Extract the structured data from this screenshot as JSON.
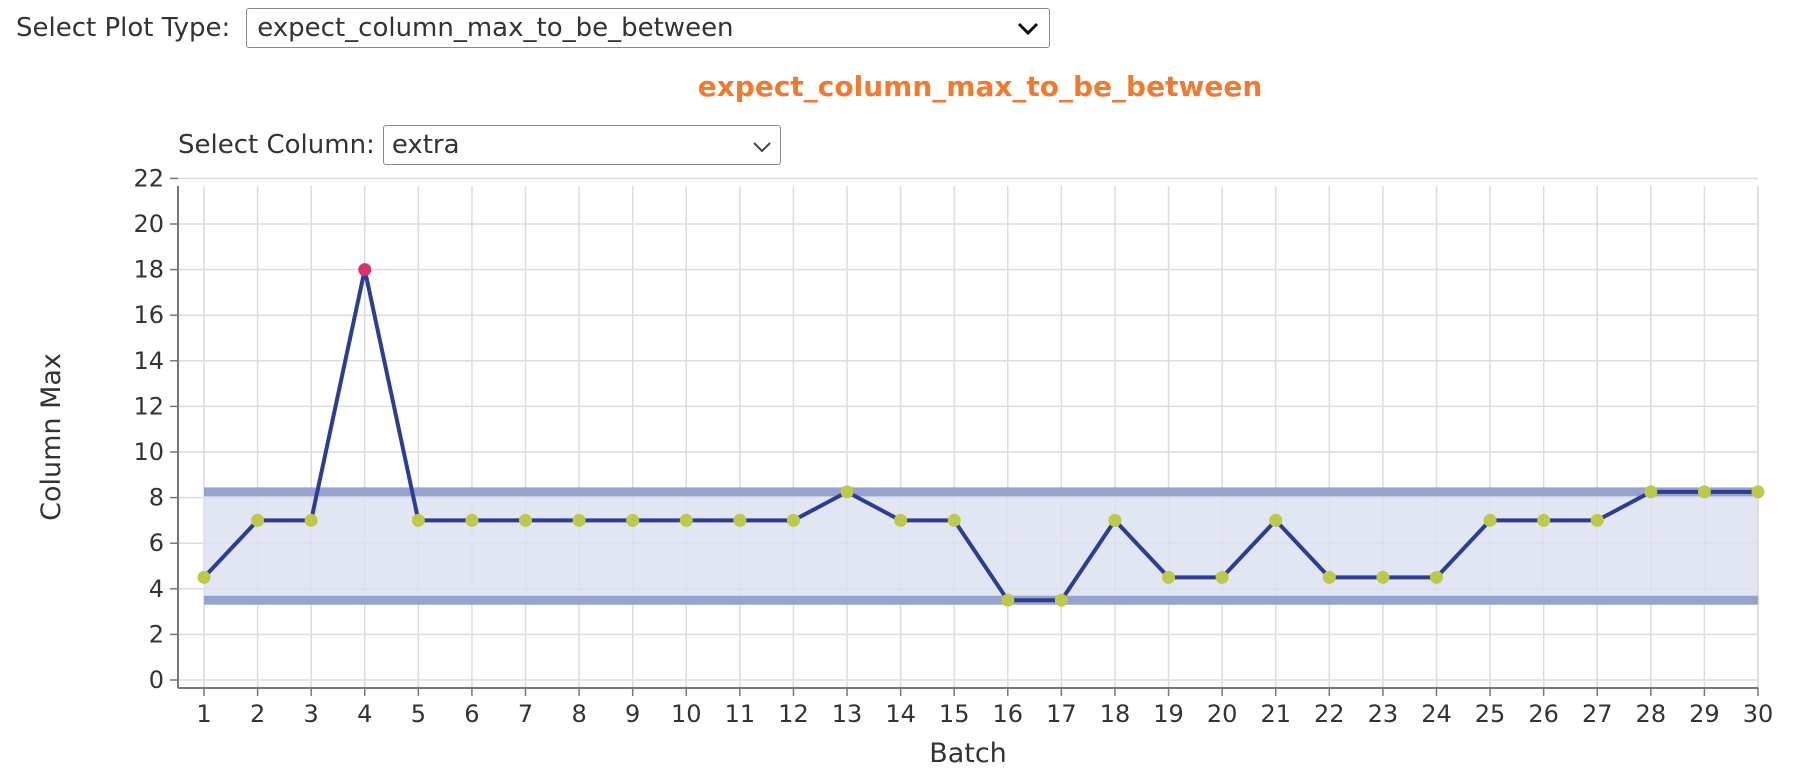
{
  "controls": {
    "plot_type_label": "Select Plot Type:",
    "plot_type_value": "expect_column_max_to_be_between",
    "column_label": "Select Column:",
    "column_value": "extra"
  },
  "icons": {
    "plot_type_dropdown": "chevron-down-icon",
    "column_dropdown": "chevron-down-icon"
  },
  "colors": {
    "title": "#f07a2f",
    "line": "#2c3e8f",
    "point_ok": "#bcc94a",
    "point_fail": "#d6336c",
    "band_fill": "#dde0f0",
    "band_edge": "#97a3cf"
  },
  "chart_data": {
    "type": "line",
    "title": "expect_column_max_to_be_between",
    "xlabel": "Batch",
    "ylabel": "Column Max",
    "x": [
      1,
      2,
      3,
      4,
      5,
      6,
      7,
      8,
      9,
      10,
      11,
      12,
      13,
      14,
      15,
      16,
      17,
      18,
      19,
      20,
      21,
      22,
      23,
      24,
      25,
      26,
      27,
      28,
      29,
      30
    ],
    "y": [
      4.5,
      7,
      7,
      18,
      7,
      7,
      7,
      7,
      7,
      7,
      7,
      7,
      8.25,
      7,
      7,
      3.5,
      3.5,
      7,
      4.5,
      4.5,
      7,
      4.5,
      4.5,
      4.5,
      7,
      7,
      7,
      8.25,
      8.25,
      8.25
    ],
    "outliers": [
      4
    ],
    "expected_range": {
      "min": 3.5,
      "max": 8.25
    },
    "xticks": [
      1,
      2,
      3,
      4,
      5,
      6,
      7,
      8,
      9,
      10,
      11,
      12,
      13,
      14,
      15,
      16,
      17,
      18,
      19,
      20,
      21,
      22,
      23,
      24,
      25,
      26,
      27,
      28,
      29,
      30
    ],
    "yticks": [
      0,
      2,
      4,
      6,
      8,
      10,
      12,
      14,
      16,
      18,
      20,
      22
    ],
    "xlim": [
      1,
      30
    ],
    "ylim": [
      0,
      22
    ],
    "grid": true
  }
}
